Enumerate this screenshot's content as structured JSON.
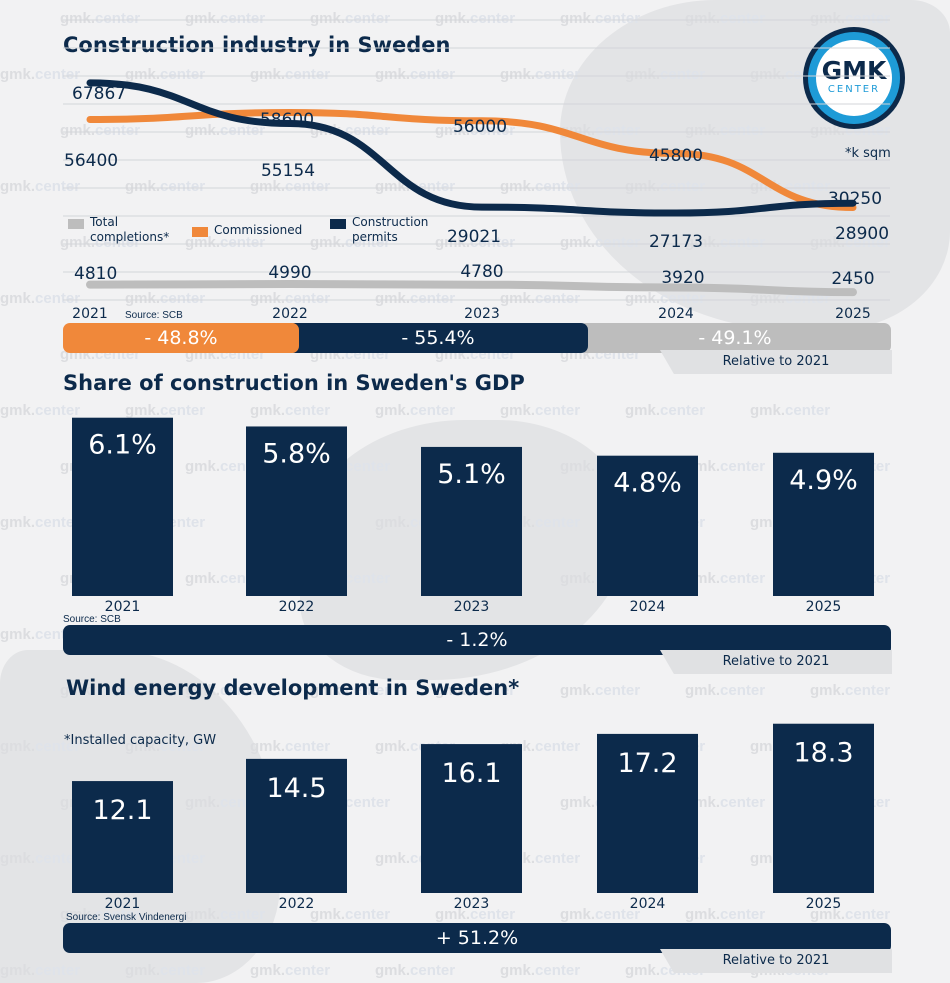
{
  "brand": {
    "logo_main": "GMK",
    "logo_sub": "CENTER",
    "watermark_prefix": "gmk.",
    "watermark_suffix": "center",
    "colors": {
      "navy": "#0c2a4b",
      "orange": "#f0883a",
      "gray": "#bdbdbd",
      "blue": "#1e9bd7"
    }
  },
  "sections": {
    "construction": {
      "title": "Construction industry in Sweden",
      "unit_note": "*k sqm",
      "source": "Source: SCB",
      "relative_note": "Relative to 2021",
      "changes": [
        "- 48.8%",
        "- 55.4%",
        "- 49.1%"
      ]
    },
    "gdp": {
      "title": "Share of construction in Sweden's GDP",
      "source": "Source: SCB",
      "relative_note": "Relative to 2021",
      "change": "- 1.2%"
    },
    "wind": {
      "title": "Wind energy development in Sweden*",
      "unit_note": "*Installed capacity, GW",
      "source": "Source: Svensk Vindenergi",
      "relative_note": "Relative to 2021",
      "change": "+ 51.2%"
    }
  },
  "chart_data": [
    {
      "type": "line",
      "title": "Construction industry in Sweden",
      "x": [
        "2021",
        "2022",
        "2023",
        "2024",
        "2025"
      ],
      "series": [
        {
          "name": "Total completions*",
          "color": "#bdbdbd",
          "values": [
            4810,
            4990,
            4780,
            3920,
            2450
          ],
          "labels": [
            "4810",
            "4990",
            "4780",
            "3920",
            "2450"
          ]
        },
        {
          "name": "Commissioned",
          "color": "#f0883a",
          "values": [
            56400,
            58600,
            56000,
            45800,
            28900
          ],
          "labels": [
            "56400",
            "58600",
            "56000",
            "45800",
            "28900"
          ]
        },
        {
          "name": "Construction permits",
          "color": "#0c2a4b",
          "values": [
            67867,
            55154,
            29021,
            27173,
            30250
          ],
          "labels": [
            "67867",
            "55154",
            "29021",
            "27173",
            "30250"
          ]
        }
      ],
      "legend": [
        "Total completions*",
        "Commissioned",
        "Construction permits"
      ],
      "grid": true,
      "ylim": [
        0,
        75000
      ]
    },
    {
      "type": "bar",
      "title": "Share of construction in Sweden's GDP",
      "categories": [
        "2021",
        "2022",
        "2023",
        "2024",
        "2025"
      ],
      "values": [
        6.1,
        5.8,
        5.1,
        4.8,
        4.9
      ],
      "labels": [
        "6.1%",
        "5.8%",
        "5.1%",
        "4.8%",
        "4.9%"
      ],
      "ylim": [
        0,
        6.5
      ]
    },
    {
      "type": "bar",
      "title": "Wind energy development in Sweden*",
      "categories": [
        "2021",
        "2022",
        "2023",
        "2024",
        "2025"
      ],
      "values": [
        12.1,
        14.5,
        16.1,
        17.2,
        18.3
      ],
      "labels": [
        "12.1",
        "14.5",
        "16.1",
        "17.2",
        "18.3"
      ],
      "ylim": [
        0,
        20
      ]
    }
  ]
}
